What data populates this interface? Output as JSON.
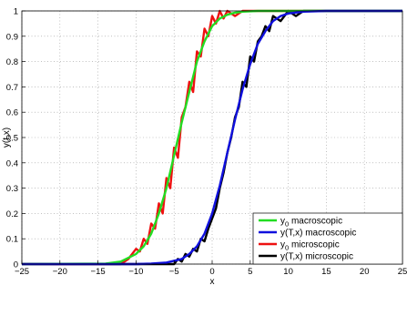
{
  "chart_data": {
    "type": "line",
    "xlabel": "x",
    "ylabel": "y(t,x)",
    "xlim": [
      -25,
      25
    ],
    "ylim": [
      0,
      1
    ],
    "xticks": [
      -25,
      -20,
      -15,
      -10,
      -5,
      0,
      5,
      10,
      15,
      20,
      25
    ],
    "yticks": [
      0,
      0.1,
      0.2,
      0.3,
      0.4,
      0.5,
      0.6,
      0.7,
      0.8,
      0.9,
      1
    ],
    "grid": true,
    "legend_position": "bottom-right",
    "series": [
      {
        "name": "y0 macroscopic",
        "label_main": "y",
        "label_sub": "0",
        "label_rest": " macroscopic",
        "color": "#22dd22",
        "x": [
          -25,
          -14,
          -12,
          -10,
          -9,
          -8,
          -7,
          -6,
          -5,
          -4,
          -3,
          -2,
          -1,
          0,
          1,
          2,
          3,
          4,
          6,
          25
        ],
        "y": [
          0,
          0.002,
          0.01,
          0.04,
          0.07,
          0.12,
          0.2,
          0.3,
          0.43,
          0.56,
          0.68,
          0.8,
          0.88,
          0.94,
          0.97,
          0.985,
          0.993,
          0.997,
          1,
          1
        ]
      },
      {
        "name": "y(T,x) macroscopic",
        "label_main": "y(T,x) macroscopic",
        "label_sub": "",
        "label_rest": "",
        "color": "#1010dd",
        "x": [
          -25,
          -10,
          -8,
          -6,
          -4,
          -3,
          -2,
          -1,
          0,
          1,
          2,
          3,
          4,
          5,
          6,
          7,
          8,
          9,
          10,
          12,
          15,
          25
        ],
        "y": [
          0,
          0,
          0.002,
          0.006,
          0.02,
          0.04,
          0.07,
          0.12,
          0.2,
          0.31,
          0.44,
          0.57,
          0.69,
          0.79,
          0.87,
          0.92,
          0.96,
          0.98,
          0.99,
          0.997,
          1,
          1
        ]
      },
      {
        "name": "y0 microscopic",
        "label_main": "y",
        "label_sub": "0",
        "label_rest": " microscopic",
        "color": "#ee1111",
        "x": [
          -25,
          -12,
          -11,
          -10,
          -9.5,
          -9,
          -8.5,
          -8,
          -7.5,
          -7,
          -6.5,
          -6,
          -5.5,
          -5,
          -4.5,
          -4,
          -3.5,
          -3,
          -2.5,
          -2,
          -1.5,
          -1,
          -0.5,
          0,
          0.5,
          1,
          1.5,
          2,
          3,
          4,
          5,
          25
        ],
        "y": [
          0,
          0,
          0.02,
          0.06,
          0.05,
          0.1,
          0.08,
          0.16,
          0.14,
          0.24,
          0.2,
          0.34,
          0.3,
          0.46,
          0.42,
          0.58,
          0.62,
          0.72,
          0.68,
          0.84,
          0.82,
          0.93,
          0.9,
          0.98,
          0.95,
          1,
          0.97,
          1,
          0.98,
          1,
          1,
          1
        ]
      },
      {
        "name": "y(T,x) microscopic",
        "label_main": "y(T,x) microscopic",
        "label_sub": "",
        "label_rest": "",
        "color": "#000000",
        "x": [
          -25,
          -5,
          -4.5,
          -4,
          -3.5,
          -3,
          -2.5,
          -2,
          -1.5,
          -1,
          -0.5,
          0,
          0.5,
          1,
          1.5,
          2,
          2.5,
          3,
          3.5,
          4,
          4.5,
          5,
          5.5,
          6,
          6.5,
          7,
          7.5,
          8,
          9,
          10,
          11,
          12,
          25
        ],
        "y": [
          0,
          0,
          0.02,
          0.01,
          0.04,
          0.03,
          0.06,
          0.05,
          0.1,
          0.09,
          0.14,
          0.18,
          0.22,
          0.3,
          0.36,
          0.44,
          0.5,
          0.58,
          0.62,
          0.72,
          0.7,
          0.82,
          0.8,
          0.88,
          0.9,
          0.94,
          0.92,
          0.98,
          0.96,
          1,
          0.98,
          1,
          1
        ]
      }
    ]
  }
}
